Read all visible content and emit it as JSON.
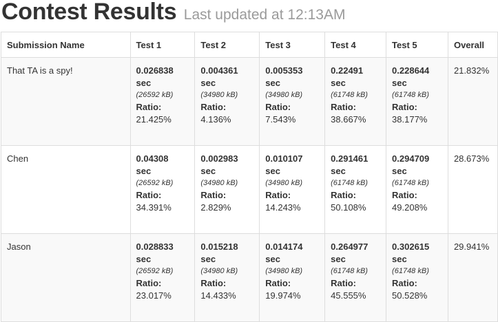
{
  "header": {
    "title": "Contest Results",
    "subtitle": "Last updated at 12:13AM"
  },
  "table": {
    "columns": [
      "Submission Name",
      "Test 1",
      "Test 2",
      "Test 3",
      "Test 4",
      "Test 5",
      "Overall"
    ],
    "sec_label": "sec",
    "ratio_label": "Ratio:",
    "rows": [
      {
        "name": "That TA is a spy!",
        "tests": [
          {
            "time": "0.026838",
            "mem": "(26592 kB)",
            "ratio": "21.425%"
          },
          {
            "time": "0.004361",
            "mem": "(34980 kB)",
            "ratio": "4.136%"
          },
          {
            "time": "0.005353",
            "mem": "(34980 kB)",
            "ratio": "7.543%"
          },
          {
            "time": "0.22491",
            "mem": "(61748 kB)",
            "ratio": "38.667%"
          },
          {
            "time": "0.228644",
            "mem": "(61748 kB)",
            "ratio": "38.177%"
          }
        ],
        "overall": "21.832%"
      },
      {
        "name": "Chen",
        "tests": [
          {
            "time": "0.04308",
            "mem": "(26592 kB)",
            "ratio": "34.391%"
          },
          {
            "time": "0.002983",
            "mem": "(34980 kB)",
            "ratio": "2.829%"
          },
          {
            "time": "0.010107",
            "mem": "(34980 kB)",
            "ratio": "14.243%"
          },
          {
            "time": "0.291461",
            "mem": "(61748 kB)",
            "ratio": "50.108%"
          },
          {
            "time": "0.294709",
            "mem": "(61748 kB)",
            "ratio": "49.208%"
          }
        ],
        "overall": "28.673%"
      },
      {
        "name": "Jason",
        "tests": [
          {
            "time": "0.028833",
            "mem": "(26592 kB)",
            "ratio": "23.017%"
          },
          {
            "time": "0.015218",
            "mem": "(34980 kB)",
            "ratio": "14.433%"
          },
          {
            "time": "0.014174",
            "mem": "(34980 kB)",
            "ratio": "19.974%"
          },
          {
            "time": "0.264977",
            "mem": "(61748 kB)",
            "ratio": "45.555%"
          },
          {
            "time": "0.302615",
            "mem": "(61748 kB)",
            "ratio": "50.528%"
          }
        ],
        "overall": "29.941%"
      }
    ]
  }
}
